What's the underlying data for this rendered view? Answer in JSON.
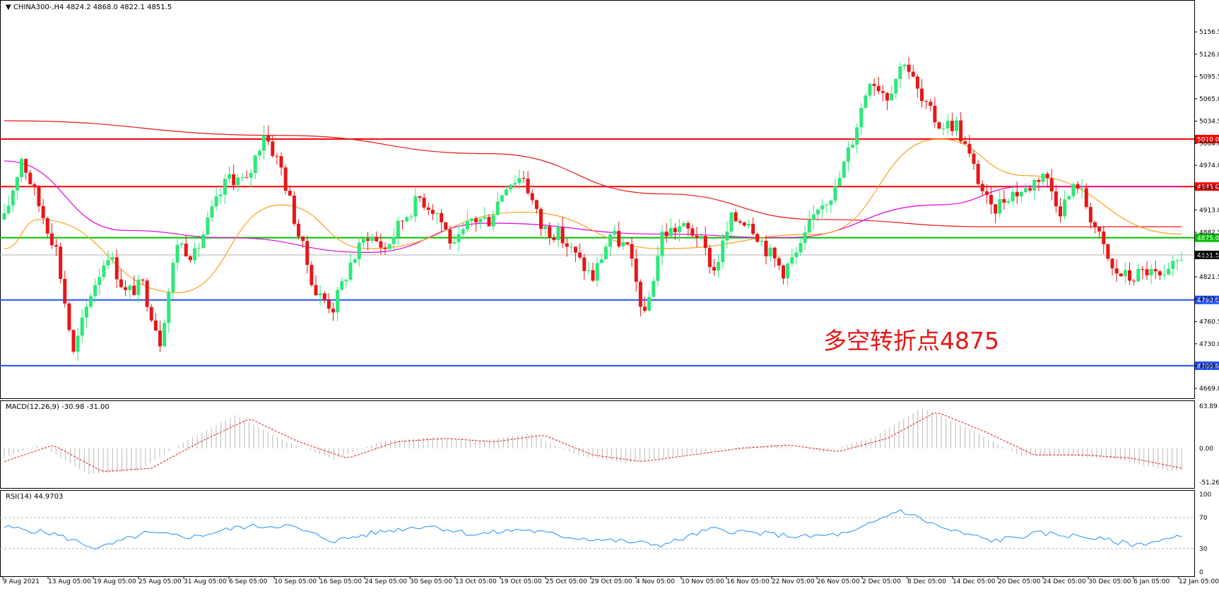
{
  "main": {
    "header": "▼ CHINA300-,H4  4824.2 4868.0 4822.1 4851.5",
    "ylim": [
      4669,
      5176
    ],
    "y_ticks": [
      "5156.5",
      "5126.0",
      "5095.5",
      "5065.0",
      "5034.5",
      "5004.0",
      "4974.0",
      "4943.5",
      "4913.0",
      "4882.5",
      "4852.0",
      "4821.5",
      "4791.0",
      "4760.5",
      "4730.0",
      "4699.5",
      "4669.0"
    ],
    "levels": [
      {
        "value": 5010.0,
        "label": "5010.0",
        "color": "#ff0000"
      },
      {
        "value": 4945.0,
        "label": "4945.0",
        "color": "#ff0000"
      },
      {
        "value": 4875.0,
        "label": "4875.0",
        "color": "#00c000"
      },
      {
        "value": 4790.0,
        "label": "4790.0",
        "color": "#2050ff"
      },
      {
        "value": 4700.0,
        "label": "4700.0",
        "color": "#2050ff"
      }
    ],
    "current_price": {
      "value": 4851.5,
      "label": "4851.5"
    },
    "annotation": "多空转折点4875",
    "colors": {
      "bull": "#2ee87a",
      "bear": "#e81616",
      "ma_long": "#e81616",
      "ma_mid": "#e000e0",
      "ma_short": "#ffa020"
    }
  },
  "macd": {
    "label": "MACD(12,26,9) -30.98 -31.00",
    "ylim": [
      -51.26,
      63.89
    ],
    "y_ticks": [
      "63.89",
      "0.00",
      "-51.26"
    ]
  },
  "rsi": {
    "label": "RSI(14) 44.9703",
    "ylim": [
      0,
      100
    ],
    "y_ticks": [
      "100",
      "70",
      "30",
      "0"
    ],
    "levels": [
      70,
      30
    ]
  },
  "x_ticks": [
    "9 Aug 2021",
    "13 Aug 05:00",
    "19 Aug 05:00",
    "25 Aug 05:00",
    "31 Aug 05:00",
    "6 Sep 05:00",
    "10 Sep 05:00",
    "16 Sep 05:00",
    "24 Sep 05:00",
    "30 Sep 05:00",
    "13 Oct 05:00",
    "19 Oct 05:00",
    "25 Oct 05:00",
    "29 Oct 05:00",
    "4 Nov 05:00",
    "10 Nov 05:00",
    "16 Nov 05:00",
    "22 Nov 05:00",
    "26 Nov 05:00",
    "2 Dec 05:00",
    "8 Dec 05:00",
    "14 Dec 05:00",
    "20 Dec 05:00",
    "24 Dec 05:00",
    "30 Dec 05:00",
    "6 Jan 05:00",
    "12 Jan 05:00"
  ],
  "chart_data": {
    "type": "candlestick",
    "symbol": "CHINA300-",
    "timeframe": "H4",
    "last_bar": {
      "open": 4824.2,
      "high": 4868.0,
      "low": 4822.1,
      "close": 4851.5
    },
    "price_path_approx": [
      {
        "x": "9 Aug 2021",
        "y": 4900
      },
      {
        "x": "10 Aug",
        "y": 4985
      },
      {
        "x": "13 Aug 05:00",
        "y": 4920
      },
      {
        "x": "16 Aug",
        "y": 4860
      },
      {
        "x": "19 Aug 05:00",
        "y": 4715
      },
      {
        "x": "20 Aug",
        "y": 4800
      },
      {
        "x": "23 Aug",
        "y": 4855
      },
      {
        "x": "25 Aug 05:00",
        "y": 4800
      },
      {
        "x": "27 Aug",
        "y": 4810
      },
      {
        "x": "30 Aug",
        "y": 4735
      },
      {
        "x": "31 Aug 05:00",
        "y": 4870
      },
      {
        "x": "2 Sep",
        "y": 4850
      },
      {
        "x": "3 Sep",
        "y": 4910
      },
      {
        "x": "6 Sep 05:00",
        "y": 4960
      },
      {
        "x": "8 Sep",
        "y": 4950
      },
      {
        "x": "9 Sep",
        "y": 5020
      },
      {
        "x": "10 Sep 05:00",
        "y": 4970
      },
      {
        "x": "13 Sep",
        "y": 4880
      },
      {
        "x": "15 Sep",
        "y": 4800
      },
      {
        "x": "16 Sep 05:00",
        "y": 4780
      },
      {
        "x": "22 Sep",
        "y": 4840
      },
      {
        "x": "24 Sep 05:00",
        "y": 4880
      },
      {
        "x": "27 Sep",
        "y": 4860
      },
      {
        "x": "29 Sep",
        "y": 4900
      },
      {
        "x": "30 Sep 05:00",
        "y": 4930
      },
      {
        "x": "12 Oct",
        "y": 4910
      },
      {
        "x": "13 Oct 05:00",
        "y": 4860
      },
      {
        "x": "15 Oct",
        "y": 4900
      },
      {
        "x": "19 Oct 05:00",
        "y": 4900
      },
      {
        "x": "21 Oct",
        "y": 4950
      },
      {
        "x": "25 Oct 05:00",
        "y": 4960
      },
      {
        "x": "26 Oct",
        "y": 4890
      },
      {
        "x": "28 Oct",
        "y": 4880
      },
      {
        "x": "29 Oct 05:00",
        "y": 4850
      },
      {
        "x": "2 Nov",
        "y": 4820
      },
      {
        "x": "3 Nov",
        "y": 4880
      },
      {
        "x": "4 Nov 05:00",
        "y": 4860
      },
      {
        "x": "9 Nov",
        "y": 4765
      },
      {
        "x": "10 Nov 05:00",
        "y": 4880
      },
      {
        "x": "12 Nov",
        "y": 4890
      },
      {
        "x": "15 Nov",
        "y": 4880
      },
      {
        "x": "16 Nov 05:00",
        "y": 4830
      },
      {
        "x": "18 Nov",
        "y": 4900
      },
      {
        "x": "22 Nov 05:00",
        "y": 4900
      },
      {
        "x": "24 Nov",
        "y": 4860
      },
      {
        "x": "26 Nov 05:00",
        "y": 4830
      },
      {
        "x": "30 Nov",
        "y": 4860
      },
      {
        "x": "2 Dec 05:00",
        "y": 4920
      },
      {
        "x": "6 Dec",
        "y": 4940
      },
      {
        "x": "7 Dec",
        "y": 5010
      },
      {
        "x": "8 Dec 05:00",
        "y": 5095
      },
      {
        "x": "9 Dec",
        "y": 5070
      },
      {
        "x": "10 Dec",
        "y": 5120
      },
      {
        "x": "13 Dec",
        "y": 5060
      },
      {
        "x": "14 Dec 05:00",
        "y": 5030
      },
      {
        "x": "16 Dec",
        "y": 5030
      },
      {
        "x": "17 Dec",
        "y": 4970
      },
      {
        "x": "20 Dec 05:00",
        "y": 4910
      },
      {
        "x": "22 Dec",
        "y": 4935
      },
      {
        "x": "24 Dec 05:00",
        "y": 4940
      },
      {
        "x": "27 Dec",
        "y": 4965
      },
      {
        "x": "29 Dec",
        "y": 4915
      },
      {
        "x": "30 Dec 05:00",
        "y": 4950
      },
      {
        "x": "31 Dec",
        "y": 4890
      },
      {
        "x": "4 Jan",
        "y": 4830
      },
      {
        "x": "6 Jan 05:00",
        "y": 4820
      },
      {
        "x": "10 Jan",
        "y": 4830
      },
      {
        "x": "11 Jan",
        "y": 4815
      },
      {
        "x": "12 Jan 05:00",
        "y": 4851.5
      }
    ],
    "horizontal_lines": [
      5010.0,
      4945.0,
      4875.0,
      4790.0,
      4700.0
    ],
    "moving_averages": [
      {
        "name": "",
        "color": "#e81616",
        "path_approx": [
          {
            "x": "9 Aug 2021",
            "y": 5035
          },
          {
            "x": "10 Sep 05:00",
            "y": 5015
          },
          {
            "x": "19 Oct 05:00",
            "y": 4990
          },
          {
            "x": "10 Nov 05:00",
            "y": 4935
          },
          {
            "x": "2 Dec 05:00",
            "y": 4900
          },
          {
            "x": "20 Dec 05:00",
            "y": 4890
          },
          {
            "x": "12 Jan 05:00",
            "y": 4890
          }
        ]
      },
      {
        "name": "",
        "color": "#e000e0",
        "path_approx": [
          {
            "x": "9 Aug 2021",
            "y": 4980
          },
          {
            "x": "25 Aug 05:00",
            "y": 4885
          },
          {
            "x": "6 Sep 05:00",
            "y": 4875
          },
          {
            "x": "24 Sep 05:00",
            "y": 4855
          },
          {
            "x": "19 Oct 05:00",
            "y": 4895
          },
          {
            "x": "10 Nov 05:00",
            "y": 4880
          },
          {
            "x": "26 Nov 05:00",
            "y": 4875
          },
          {
            "x": "14 Dec 05:00",
            "y": 4920
          },
          {
            "x": "24 Dec 05:00",
            "y": 4945
          },
          {
            "x": "12 Jan 05:00",
            "y": 4945
          }
        ]
      },
      {
        "name": "",
        "color": "#ffa020",
        "path_approx": [
          {
            "x": "9 Aug 2021",
            "y": 4860
          },
          {
            "x": "13 Aug 05:00",
            "y": 4900
          },
          {
            "x": "31 Aug 05:00",
            "y": 4800
          },
          {
            "x": "10 Sep 05:00",
            "y": 4920
          },
          {
            "x": "24 Sep 05:00",
            "y": 4860
          },
          {
            "x": "25 Oct 05:00",
            "y": 4910
          },
          {
            "x": "10 Nov 05:00",
            "y": 4860
          },
          {
            "x": "2 Dec 05:00",
            "y": 4880
          },
          {
            "x": "14 Dec 05:00",
            "y": 5010
          },
          {
            "x": "24 Dec 05:00",
            "y": 4960
          },
          {
            "x": "12 Jan 05:00",
            "y": 4880
          }
        ]
      }
    ],
    "macd_signal_path_approx": [
      -20,
      5,
      -35,
      -30,
      10,
      45,
      10,
      -15,
      10,
      15,
      10,
      20,
      -10,
      -20,
      -10,
      0,
      5,
      -5,
      15,
      55,
      25,
      -10,
      -10,
      -15,
      -30
    ],
    "rsi_path_approx": [
      58,
      50,
      30,
      50,
      45,
      58,
      60,
      40,
      52,
      60,
      48,
      55,
      45,
      40,
      35,
      55,
      50,
      45,
      50,
      80,
      55,
      40,
      50,
      45,
      35,
      45
    ]
  }
}
